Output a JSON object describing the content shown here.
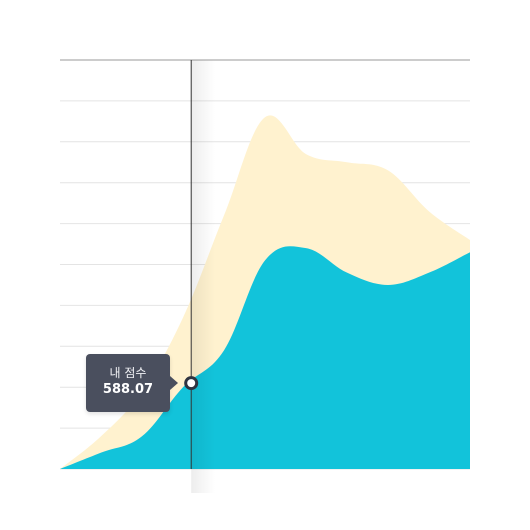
{
  "chart_data": {
    "type": "area",
    "x": [
      0,
      1,
      2,
      3,
      4,
      5,
      6,
      7,
      8,
      9,
      10
    ],
    "series": [
      {
        "color": "#fff2cf",
        "values": [
          0,
          0.8,
          1.9,
          3.7,
          6.2,
          8.6,
          7.7,
          7.5,
          7.3,
          6.3,
          5.6
        ]
      },
      {
        "color": "#12c3da",
        "values": [
          0,
          0.4,
          0.8,
          2.0,
          2.9,
          5.1,
          5.4,
          4.8,
          4.5,
          4.8,
          5.3
        ]
      }
    ],
    "ylim": [
      0,
      10
    ],
    "xlim": [
      0,
      10
    ],
    "grid": true,
    "gridlines": 10,
    "cursor": {
      "x": 3.2,
      "y": 2.1
    },
    "tooltip": {
      "label": "내 점수",
      "value": "588.07"
    },
    "colors": {
      "grid": "#e4e4e4",
      "top_line": "#9a9a9a",
      "cursor_line": "#333333",
      "marker_stroke": "#2f3441",
      "tooltip_bg": "#4a4f5e"
    }
  }
}
